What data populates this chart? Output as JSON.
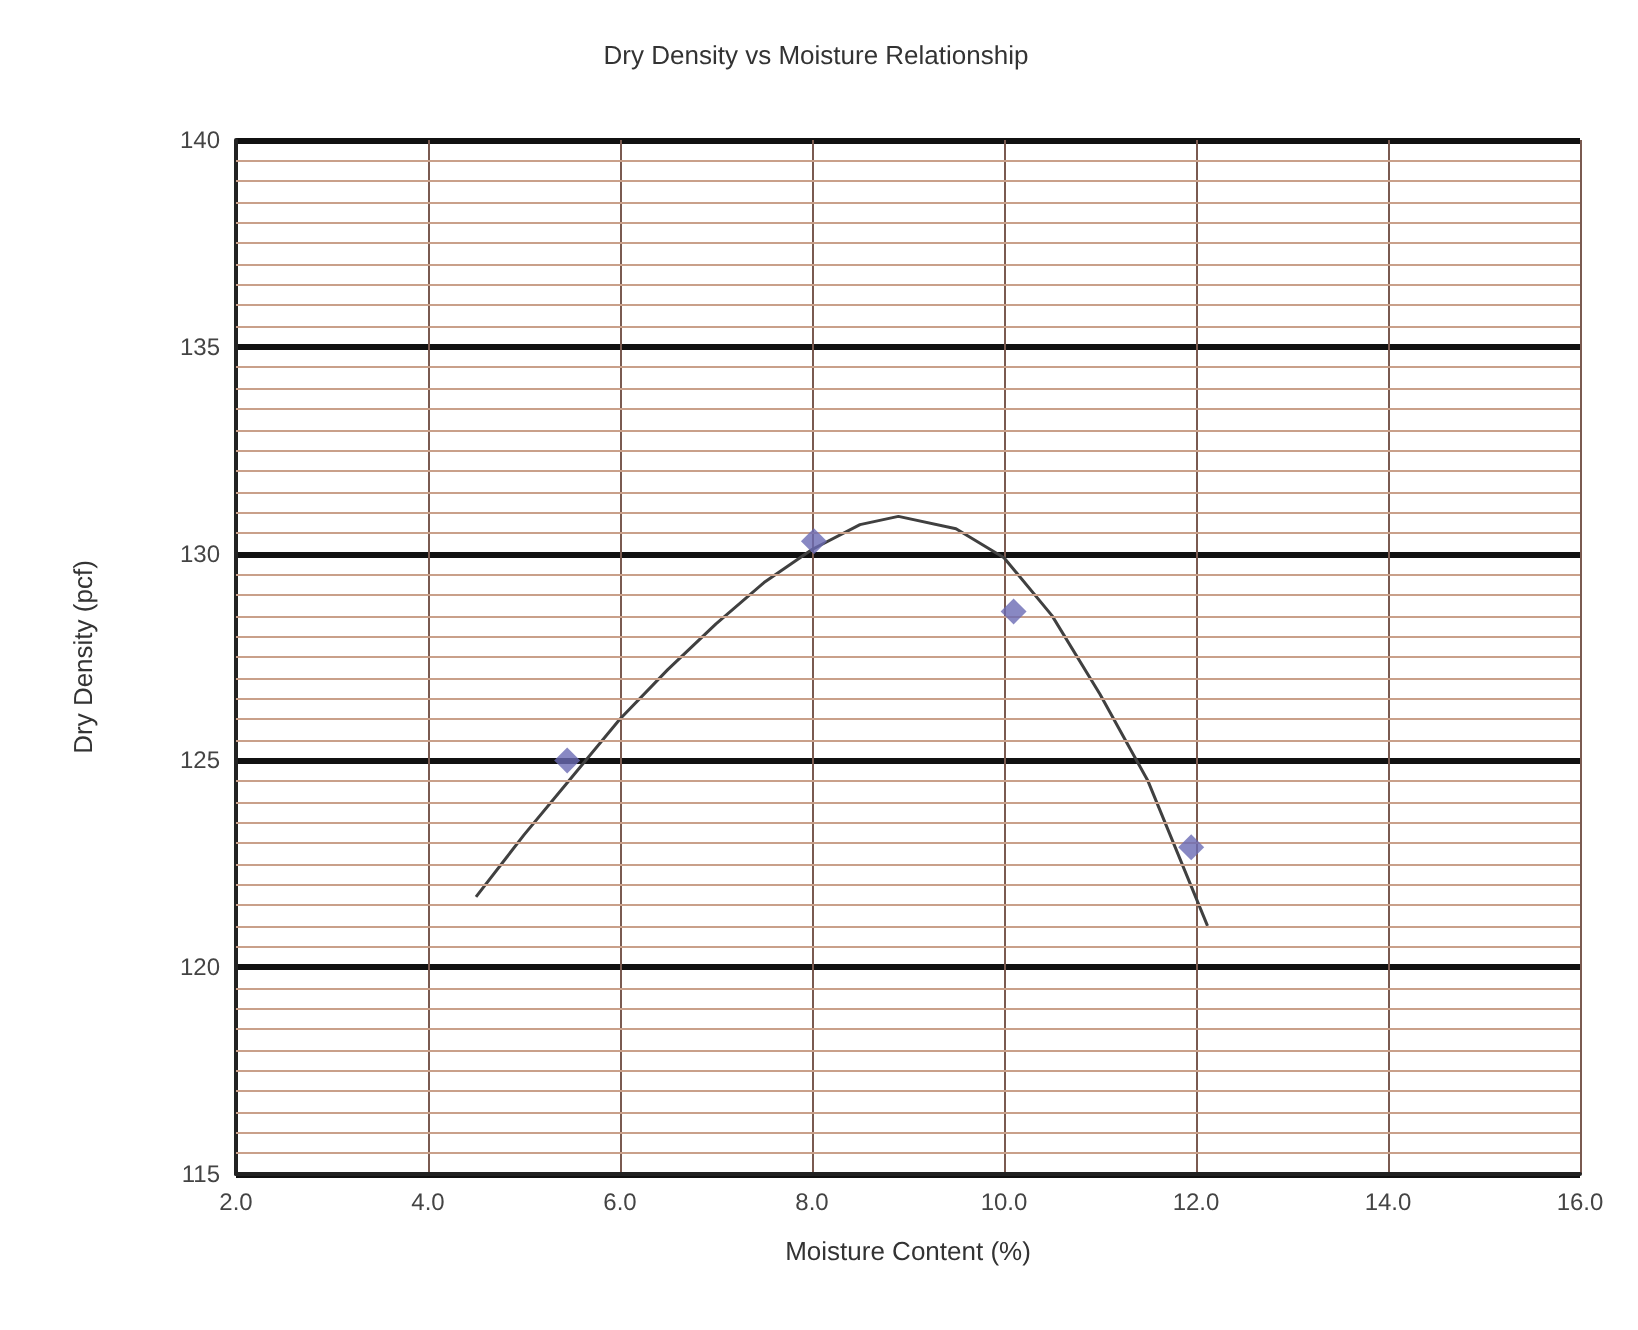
{
  "chart_data": {
    "type": "scatter",
    "title": "Dry Density vs Moisture Relationship",
    "xlabel": "Moisture Content (%)",
    "ylabel": "Dry Density (pcf)",
    "xlim": [
      2,
      16
    ],
    "xticks": [
      {
        "value": 2,
        "label": "2.0"
      },
      {
        "value": 4,
        "label": "4.0"
      },
      {
        "value": 6,
        "label": "6.0"
      },
      {
        "value": 8,
        "label": "8.0"
      },
      {
        "value": 10,
        "label": "10.0"
      },
      {
        "value": 12,
        "label": "12.0"
      },
      {
        "value": 14,
        "label": "14.0"
      },
      {
        "value": 16,
        "label": "16.0"
      }
    ],
    "ylim": [
      115,
      140
    ],
    "yticks": [
      115,
      {
        "value": 115.5,
        "label": null
      },
      {
        "value": 116,
        "label": null
      },
      {
        "value": 116.5,
        "label": null
      },
      {
        "value": 117,
        "label": null
      },
      {
        "value": 117.5,
        "label": null
      },
      {
        "value": 118,
        "label": null
      },
      {
        "value": 118.5,
        "label": null
      },
      {
        "value": 119,
        "label": null
      },
      {
        "value": 119.5,
        "label": null
      },
      120,
      {
        "value": 120.5,
        "label": null
      },
      {
        "value": 121,
        "label": null
      },
      {
        "value": 121.5,
        "label": null
      },
      {
        "value": 122,
        "label": null
      },
      {
        "value": 122.5,
        "label": null
      },
      {
        "value": 123,
        "label": null
      },
      {
        "value": 123.5,
        "label": null
      },
      {
        "value": 124,
        "label": null
      },
      {
        "value": 124.5,
        "label": null
      },
      125,
      {
        "value": 125.5,
        "label": null
      },
      {
        "value": 126,
        "label": null
      },
      {
        "value": 126.5,
        "label": null
      },
      {
        "value": 127,
        "label": null
      },
      {
        "value": 127.5,
        "label": null
      },
      {
        "value": 128,
        "label": null
      },
      {
        "value": 128.5,
        "label": null
      },
      {
        "value": 129,
        "label": null
      },
      {
        "value": 129.5,
        "label": null
      },
      130,
      {
        "value": 130.5,
        "label": null
      },
      {
        "value": 131,
        "label": null
      },
      {
        "value": 131.5,
        "label": null
      },
      {
        "value": 132,
        "label": null
      },
      {
        "value": 132.5,
        "label": null
      },
      {
        "value": 133,
        "label": null
      },
      {
        "value": 133.5,
        "label": null
      },
      {
        "value": 134,
        "label": null
      },
      {
        "value": 134.5,
        "label": null
      },
      135,
      {
        "value": 135.5,
        "label": null
      },
      {
        "value": 136,
        "label": null
      },
      {
        "value": 136.5,
        "label": null
      },
      {
        "value": 137,
        "label": null
      },
      {
        "value": 137.5,
        "label": null
      },
      {
        "value": 138,
        "label": null
      },
      {
        "value": 138.5,
        "label": null
      },
      {
        "value": 139,
        "label": null
      },
      {
        "value": 139.5,
        "label": null
      },
      140
    ],
    "grid": true,
    "marker": "diamond",
    "series": [
      {
        "color": "#6a6ab4",
        "x": [
          5.45,
          8.02,
          10.1,
          11.95
        ],
        "values": [
          125.0,
          130.3,
          128.6,
          122.9
        ]
      },
      {
        "type": "line",
        "color": "#404040",
        "marker": "none",
        "x": [
          4.5,
          5.0,
          5.5,
          6.0,
          6.5,
          7.0,
          7.5,
          8.0,
          8.5,
          8.9,
          9.5,
          10.0,
          10.5,
          11.0,
          11.5,
          12.12
        ],
        "values": [
          121.7,
          123.2,
          124.6,
          126.0,
          127.2,
          128.3,
          129.3,
          130.1,
          130.7,
          130.9,
          130.6,
          129.9,
          128.5,
          126.6,
          124.5,
          121.0
        ]
      }
    ]
  }
}
